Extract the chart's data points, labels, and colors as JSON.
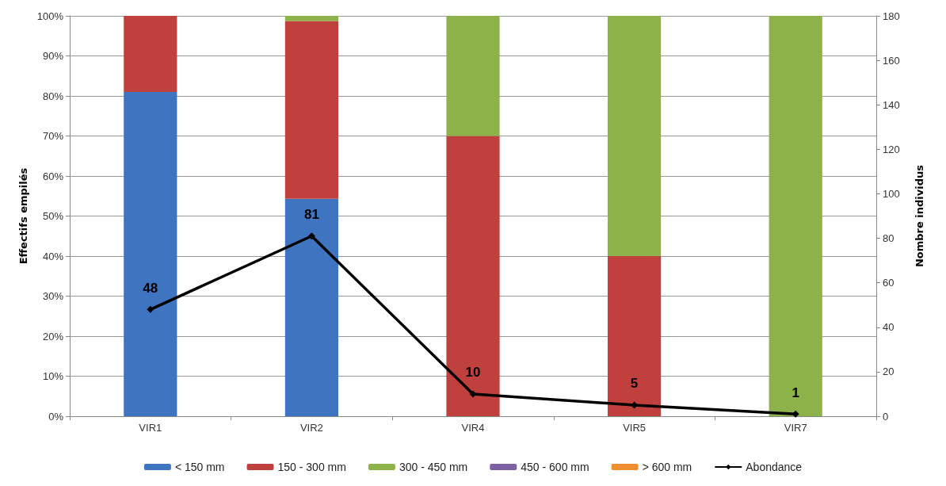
{
  "chart_data": {
    "type": "bar",
    "stacked": true,
    "ylabel": "Effectifs empilés",
    "y2label": "Nombre individus",
    "categories": [
      "VIR1",
      "VIR2",
      "VIR4",
      "VIR5",
      "VIR7"
    ],
    "series": [
      {
        "name": "< 150 mm",
        "color": "#3f74c0",
        "values": [
          81,
          54.3,
          0,
          0,
          0
        ]
      },
      {
        "name": "150 - 300 mm",
        "color": "#c0403d",
        "values": [
          19,
          44.4,
          70,
          40,
          0
        ]
      },
      {
        "name": "300 - 450 mm",
        "color": "#8db24a",
        "values": [
          0,
          1.3,
          30,
          60,
          100
        ]
      },
      {
        "name": "450 - 600 mm",
        "color": "#7d5fa5",
        "values": [
          0,
          0,
          0,
          0,
          0
        ]
      },
      {
        "name": "> 600 mm",
        "color": "#ef8f2f",
        "values": [
          0,
          0,
          0,
          0,
          0
        ]
      },
      {
        "name": "Abondance",
        "type": "line",
        "axis": "y2",
        "color": "#000000",
        "marker": "diamond",
        "values": [
          48,
          81,
          10,
          5,
          1
        ],
        "value_labels": [
          "48",
          "81",
          "10",
          "5",
          "1"
        ]
      }
    ],
    "ylim": [
      0,
      100
    ],
    "yticks": [
      {
        "value": 0,
        "label": "0%"
      },
      {
        "value": 10,
        "label": "10%"
      },
      {
        "value": 20,
        "label": "20%"
      },
      {
        "value": 30,
        "label": "30%"
      },
      {
        "value": 40,
        "label": "40%"
      },
      {
        "value": 50,
        "label": "50%"
      },
      {
        "value": 60,
        "label": "60%"
      },
      {
        "value": 70,
        "label": "70%"
      },
      {
        "value": 80,
        "label": "80%"
      },
      {
        "value": 90,
        "label": "90%"
      },
      {
        "value": 100,
        "label": "100%"
      }
    ],
    "y2lim": [
      0,
      180
    ],
    "y2ticks": [
      0,
      20,
      40,
      60,
      80,
      100,
      120,
      140,
      160,
      180
    ],
    "grid": "y",
    "legend": "bottom"
  }
}
